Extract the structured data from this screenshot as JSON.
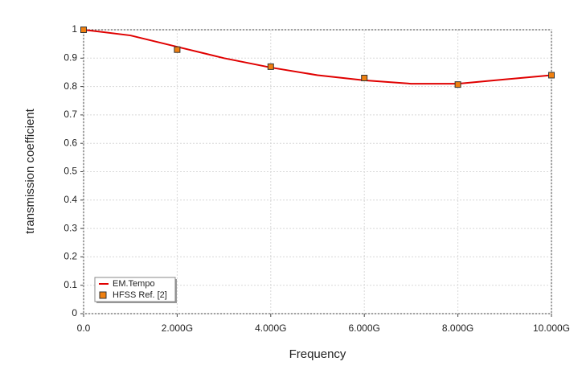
{
  "chart_data": {
    "type": "line",
    "xlabel": "Frequency",
    "ylabel": "transmission coefficient",
    "xlim": [
      0,
      10000000000
    ],
    "ylim": [
      0,
      1
    ],
    "xticks": [
      {
        "value": 0,
        "label": "0.0"
      },
      {
        "value": 2000000000,
        "label": "2.000G"
      },
      {
        "value": 4000000000,
        "label": "4.000G"
      },
      {
        "value": 6000000000,
        "label": "6.000G"
      },
      {
        "value": 8000000000,
        "label": "8.000G"
      },
      {
        "value": 10000000000,
        "label": "10.000G"
      }
    ],
    "yticks": [
      0,
      0.1,
      0.2,
      0.3,
      0.4,
      0.5,
      0.6,
      0.7,
      0.8,
      0.9,
      1
    ],
    "grid": true,
    "legend": "lower left",
    "series": [
      {
        "name": "EM.Tempo",
        "color": "#e00000",
        "style": "line",
        "x": [
          0,
          1000000000,
          2000000000,
          3000000000,
          4000000000,
          5000000000,
          6000000000,
          7000000000,
          8000000000,
          9000000000,
          10000000000
        ],
        "values": [
          1.0,
          0.98,
          0.94,
          0.9,
          0.867,
          0.84,
          0.822,
          0.81,
          0.81,
          0.825,
          0.84
        ]
      },
      {
        "name": "HFSS Ref. [2]",
        "color": "#f08010",
        "style": "marker",
        "x": [
          0,
          2000000000,
          4000000000,
          6000000000,
          8000000000,
          10000000000
        ],
        "values": [
          1.0,
          0.93,
          0.87,
          0.83,
          0.807,
          0.84
        ]
      }
    ]
  }
}
